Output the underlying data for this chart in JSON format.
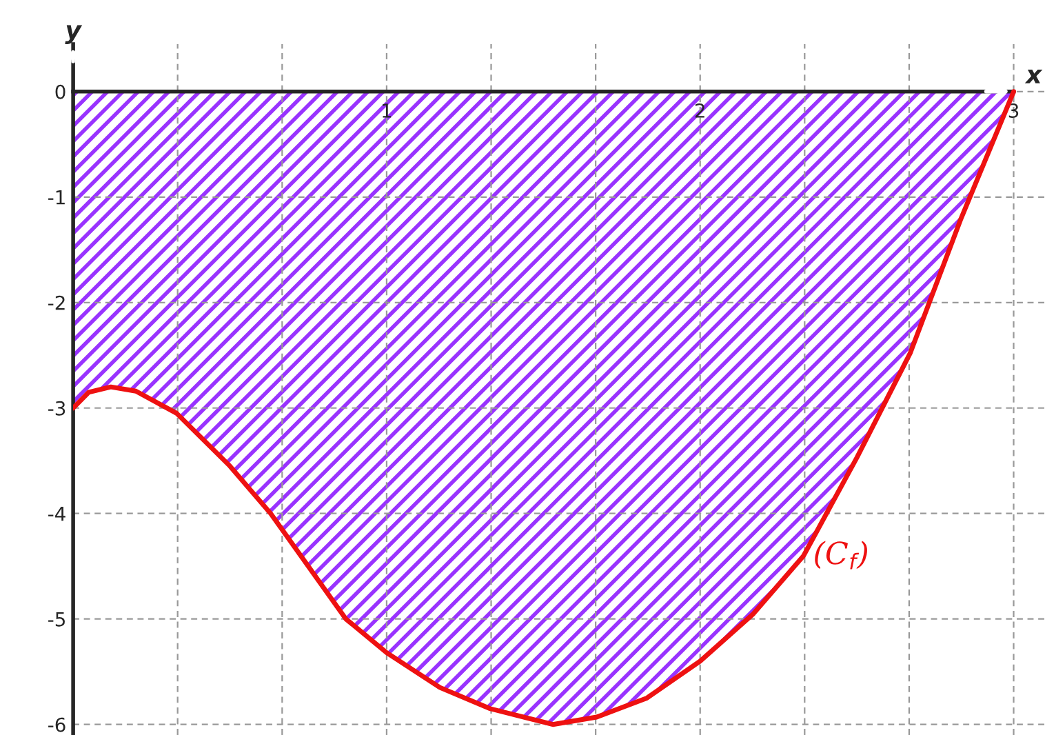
{
  "chart_data": {
    "type": "area",
    "xlabel": "x",
    "ylabel": "y",
    "x": [
      0,
      0.05,
      0.12,
      0.2,
      0.33,
      0.5,
      0.63,
      0.87,
      1,
      1.17,
      1.33,
      1.53,
      1.67,
      1.83,
      2,
      2.17,
      2.33,
      2.5,
      2.67,
      2.83,
      3
    ],
    "series": [
      {
        "name": "(C$_{f}$)",
        "color": "#ee1111",
        "values": [
          -3,
          -2.85,
          -2.8,
          -2.84,
          -3.05,
          -3.55,
          -4,
          -5,
          -5.32,
          -5.65,
          -5.85,
          -6,
          -5.93,
          -5.75,
          -5.4,
          -4.95,
          -4.4,
          -3.47,
          -2.48,
          -1.22,
          0
        ]
      }
    ],
    "xlim": [
      0,
      3.1
    ],
    "ylim": [
      -6.1,
      0.45
    ],
    "xticks": [
      {
        "value": 0.3333,
        "label": null
      },
      {
        "value": 0.6667,
        "label": null
      },
      1,
      {
        "value": 1.3333,
        "label": null
      },
      {
        "value": 1.6667,
        "label": null
      },
      2,
      {
        "value": 2.3333,
        "label": null
      },
      {
        "value": 2.6667,
        "label": null
      },
      3
    ],
    "yticks": [
      0,
      -1,
      -2,
      -3,
      -4,
      -5,
      -6
    ],
    "grid": true
  }
}
